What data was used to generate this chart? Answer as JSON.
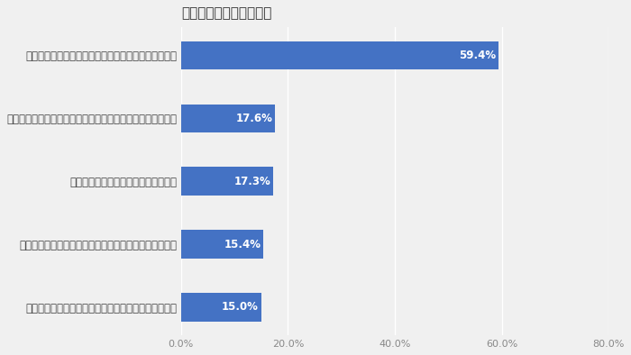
{
  "title": "介護離職を選択した理由",
  "categories": [
    "施設へ入所できず「手助・介護」の負担が増えたため",
    "自身の希望として「手助・介護」に専念したかったため",
    "自分の心身の健康状態が悪化したため",
    "「手助・介護」をする家族・親族が自分しかいなかったため",
    "仕事と「手助・介護」の両立が難しい職場だったため"
  ],
  "values": [
    15.0,
    15.4,
    17.3,
    17.6,
    59.4
  ],
  "bar_color": "#4472C4",
  "background_color": "#f0f0f0",
  "grid_color": "#ffffff",
  "xlim": [
    0,
    80
  ],
  "xticks": [
    0,
    20,
    40,
    60,
    80
  ],
  "xtick_labels": [
    "0.0%",
    "20.0%",
    "40.0%",
    "60.0%",
    "80.0%"
  ],
  "title_fontsize": 11,
  "label_fontsize": 8.5,
  "value_fontsize": 8.5,
  "tick_fontsize": 8
}
